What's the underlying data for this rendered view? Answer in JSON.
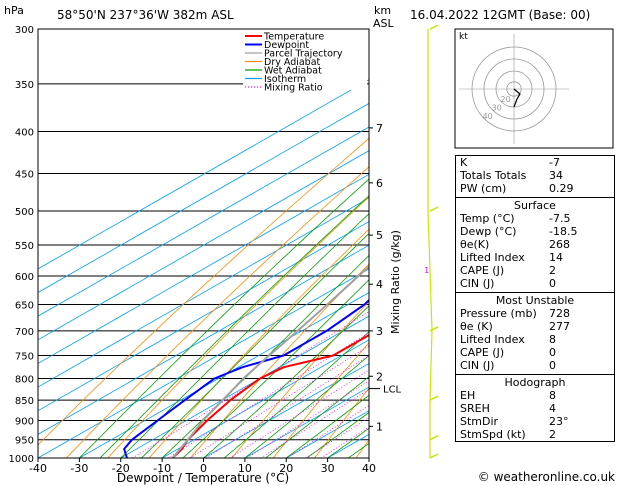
{
  "header": {
    "units_label": "hPa",
    "location": "58°50'N  237°36'W  382m  ASL",
    "alt_unit_km": "km",
    "alt_unit_asl": "ASL",
    "datetime": "16.04.2022  12GMT  (Base: 00)"
  },
  "chart_data": {
    "type": "line",
    "subtype": "skew-t log-p",
    "xlabel": "Dewpoint / Temperature (°C)",
    "ylabel": "",
    "mixing_ratio_label": "Mixing Ratio (g/kg)",
    "x_ticks": [
      -40,
      -30,
      -20,
      -10,
      0,
      10,
      20,
      30,
      40
    ],
    "xlim": [
      -40,
      40
    ],
    "pressure_levels": [
      300,
      350,
      400,
      450,
      500,
      550,
      600,
      650,
      700,
      750,
      800,
      850,
      900,
      950,
      1000
    ],
    "ylim": [
      1000,
      300
    ],
    "y_scale": "log",
    "legend": {
      "placement": "top",
      "entries": [
        {
          "name": "Temperature",
          "color": "#ff0000",
          "style": "solid"
        },
        {
          "name": "Dewpoint",
          "color": "#0000ff",
          "style": "solid"
        },
        {
          "name": "Parcel Trajectory",
          "color": "#a0a0a0",
          "style": "solid"
        },
        {
          "name": "Dry Adiabat",
          "color": "#ff8c00",
          "style": "solid"
        },
        {
          "name": "Wet Adiabat",
          "color": "#00a000",
          "style": "solid"
        },
        {
          "name": "Isotherm",
          "color": "#00a0ff",
          "style": "solid"
        },
        {
          "name": "Mixing Ratio",
          "color": "#ff00ff",
          "style": "dotted"
        }
      ]
    },
    "mixing_ratio_values": [
      "1",
      "2",
      "3",
      "4",
      "6",
      "8",
      "10",
      "15",
      "20",
      "25"
    ],
    "altitude_km_labels": [
      {
        "km": "1",
        "p": 915
      },
      {
        "km": "2",
        "p": 795
      },
      {
        "km": "3",
        "p": 700
      },
      {
        "km": "4",
        "p": 614
      },
      {
        "km": "5",
        "p": 535
      },
      {
        "km": "6",
        "p": 462
      },
      {
        "km": "7",
        "p": 396
      }
    ],
    "lcl_label": "LCL",
    "lcl_pressure": 823,
    "series": [
      {
        "name": "Temperature",
        "color": "#ff0000",
        "points": [
          {
            "p": 1000,
            "t": -7.5
          },
          {
            "p": 975,
            "t": -9
          },
          {
            "p": 950,
            "t": -11.5
          },
          {
            "p": 900,
            "t": -15
          },
          {
            "p": 850,
            "t": -18
          },
          {
            "p": 800,
            "t": -20
          },
          {
            "p": 775,
            "t": -19
          },
          {
            "p": 750,
            "t": -12
          },
          {
            "p": 700,
            "t": -12
          },
          {
            "p": 650,
            "t": -14
          },
          {
            "p": 600,
            "t": -18
          },
          {
            "p": 550,
            "t": -22.5
          },
          {
            "p": 500,
            "t": -27
          },
          {
            "p": 450,
            "t": -32
          },
          {
            "p": 400,
            "t": -37
          },
          {
            "p": 350,
            "t": -42
          },
          {
            "p": 325,
            "t": -45
          },
          {
            "p": 300,
            "t": -45
          }
        ]
      },
      {
        "name": "Dewpoint",
        "color": "#0000ff",
        "points": [
          {
            "p": 1000,
            "t": -18.5
          },
          {
            "p": 975,
            "t": -23
          },
          {
            "p": 950,
            "t": -25
          },
          {
            "p": 900,
            "t": -27
          },
          {
            "p": 850,
            "t": -29
          },
          {
            "p": 800,
            "t": -31
          },
          {
            "p": 775,
            "t": -29
          },
          {
            "p": 750,
            "t": -24
          },
          {
            "p": 700,
            "t": -24
          },
          {
            "p": 650,
            "t": -26
          },
          {
            "p": 600,
            "t": -31
          },
          {
            "p": 550,
            "t": -36
          },
          {
            "p": 500,
            "t": -42
          },
          {
            "p": 450,
            "t": -48
          },
          {
            "p": 400,
            "t": -53
          },
          {
            "p": 350,
            "t": -57
          },
          {
            "p": 300,
            "t": -60
          }
        ]
      },
      {
        "name": "Parcel Trajectory",
        "color": "#a0a0a0",
        "points": [
          {
            "p": 1000,
            "t": -7.5
          },
          {
            "p": 950,
            "t": -11.5
          },
          {
            "p": 900,
            "t": -16
          },
          {
            "p": 823,
            "t": -22
          },
          {
            "p": 800,
            "t": -24
          },
          {
            "p": 750,
            "t": -27.5
          },
          {
            "p": 700,
            "t": -31
          },
          {
            "p": 650,
            "t": -35
          },
          {
            "p": 600,
            "t": -39.5
          },
          {
            "p": 550,
            "t": -44.5
          },
          {
            "p": 500,
            "t": -50
          },
          {
            "p": 450,
            "t": -56
          },
          {
            "p": 400,
            "t": -62.5
          },
          {
            "p": 350,
            "t": -70
          }
        ]
      }
    ],
    "wind_barbs": [
      1000,
      950,
      850,
      700,
      500,
      300
    ]
  },
  "hodograph": {
    "unit_label": "kt",
    "ring_labels": [
      "20",
      "30",
      "40"
    ]
  },
  "indices": {
    "rows": [
      {
        "label": "K",
        "value": "-7"
      },
      {
        "label": "Totals Totals",
        "value": "34"
      },
      {
        "label": "PW (cm)",
        "value": "0.29"
      }
    ]
  },
  "surface": {
    "title": "Surface",
    "rows": [
      {
        "label": "Temp (°C)",
        "value": "-7.5"
      },
      {
        "label": "Dewp (°C)",
        "value": "-18.5"
      },
      {
        "label": "θe(K)",
        "value": "268"
      },
      {
        "label": "Lifted Index",
        "value": "14"
      },
      {
        "label": "CAPE (J)",
        "value": "2"
      },
      {
        "label": "CIN (J)",
        "value": "0"
      }
    ]
  },
  "most_unstable": {
    "title": "Most Unstable",
    "rows": [
      {
        "label": "Pressure (mb)",
        "value": "728"
      },
      {
        "label": "θe (K)",
        "value": "277"
      },
      {
        "label": "Lifted Index",
        "value": "8"
      },
      {
        "label": "CAPE (J)",
        "value": "0"
      },
      {
        "label": "CIN (J)",
        "value": "0"
      }
    ]
  },
  "hodograph_stats": {
    "title": "Hodograph",
    "rows": [
      {
        "label": "EH",
        "value": "8"
      },
      {
        "label": "SREH",
        "value": "4"
      },
      {
        "label": "StmDir",
        "value": "23°"
      },
      {
        "label": "StmSpd (kt)",
        "value": "2"
      }
    ]
  },
  "footer": {
    "copyright": "© weatheronline.co.uk"
  },
  "colors": {
    "temperature": "#ff0000",
    "dewpoint": "#0000ff",
    "parcel": "#a0a0a0",
    "dry_adiabat": "#ff8c00",
    "wet_adiabat": "#00a000",
    "isotherm": "#00a0ff",
    "mixing_ratio": "#ff00ff",
    "wind": "#c8e600"
  }
}
